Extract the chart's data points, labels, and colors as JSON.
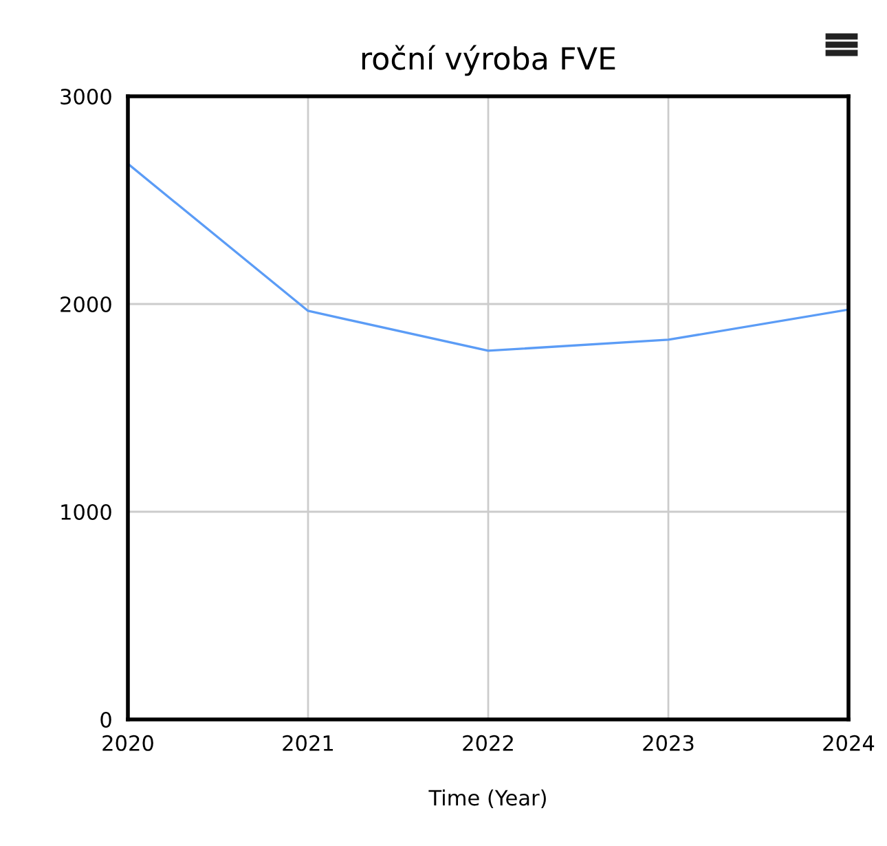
{
  "chart_data": {
    "type": "line",
    "title": "roční výroba FVE",
    "xlabel": "Time (Year)",
    "x": [
      2020,
      2021,
      2022,
      2023,
      2024
    ],
    "series": [
      {
        "color": "#5b9cf6",
        "values": [
          2675,
          1967,
          1775,
          1828,
          1973
        ]
      }
    ],
    "xlim": [
      2020,
      2024
    ],
    "xticks": [
      2020,
      2021,
      2022,
      2023,
      2024
    ],
    "ylim": [
      0,
      3000
    ],
    "yticks": [
      0,
      1000,
      2000,
      3000
    ],
    "grid": true,
    "legend": false,
    "marker": "none",
    "line_style": "solid"
  }
}
